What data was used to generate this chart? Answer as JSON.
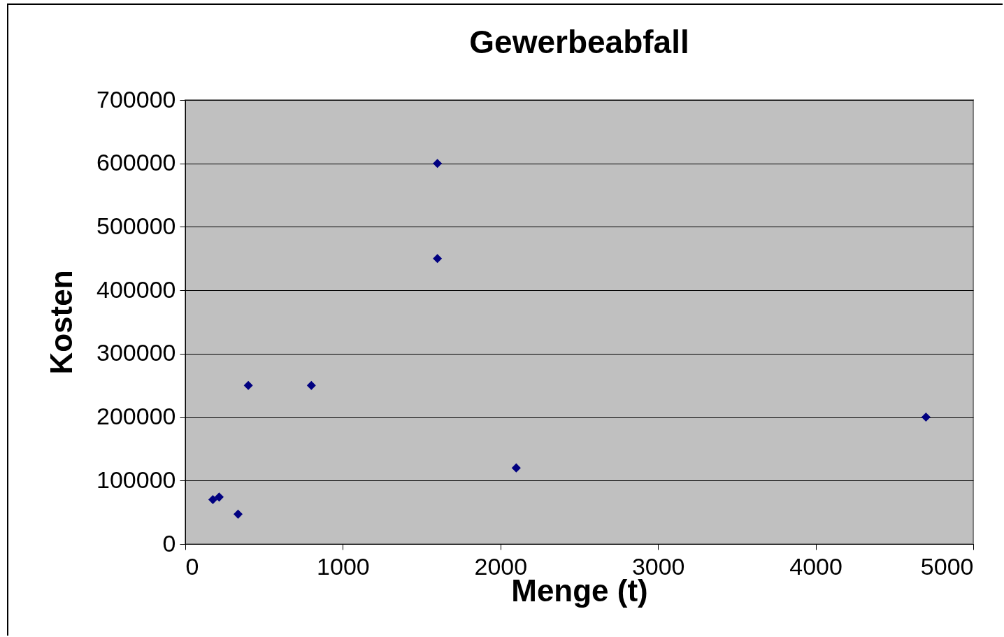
{
  "chart_data": {
    "type": "scatter",
    "title": "Gewerbeabfall",
    "xlabel": "Menge (t)",
    "ylabel": "Kosten",
    "x": [
      175,
      215,
      335,
      400,
      800,
      1600,
      1600,
      2100,
      4700
    ],
    "series": [
      {
        "color": "#000080",
        "values": [
          70000,
          74000,
          47000,
          250000,
          250000,
          600000,
          450000,
          120000,
          200000
        ]
      }
    ],
    "xlim": [
      0,
      5000
    ],
    "xticks": [
      0,
      1000,
      2000,
      3000,
      4000,
      5000
    ],
    "ylim": [
      0,
      700000
    ],
    "yticks": [
      0,
      100000,
      200000,
      300000,
      400000,
      500000,
      600000,
      700000
    ],
    "grid": "y",
    "marker": "diamond",
    "legend": false
  }
}
